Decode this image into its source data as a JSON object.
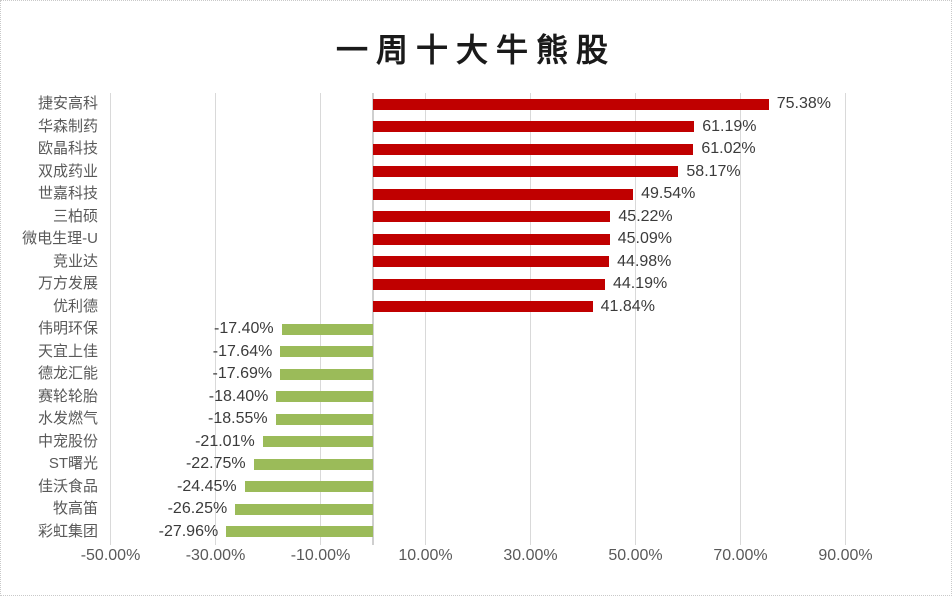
{
  "chart_data": {
    "type": "bar",
    "orientation": "horizontal",
    "title": "一周十大牛熊股",
    "categories": [
      "捷安高科",
      "华森制药",
      "欧晶科技",
      "双成药业",
      "世嘉科技",
      "三柏硕",
      "微电生理-U",
      "竞业达",
      "万方发展",
      "优利德",
      "伟明环保",
      "天宜上佳",
      "德龙汇能",
      "赛轮轮胎",
      "水发燃气",
      "中宠股份",
      "ST曙光",
      "佳沃食品",
      "牧高笛",
      "彩虹集团"
    ],
    "values": [
      75.38,
      61.19,
      61.02,
      58.17,
      49.54,
      45.22,
      45.09,
      44.98,
      44.19,
      41.84,
      -17.4,
      -17.64,
      -17.69,
      -18.4,
      -18.55,
      -21.01,
      -22.75,
      -24.45,
      -26.25,
      -27.96
    ],
    "value_labels": [
      "75.38%",
      "61.19%",
      "61.02%",
      "58.17%",
      "49.54%",
      "45.22%",
      "45.09%",
      "44.98%",
      "44.19%",
      "41.84%",
      "-17.40%",
      "-17.64%",
      "-17.69%",
      "-18.40%",
      "-18.55%",
      "-21.01%",
      "-22.75%",
      "-24.45%",
      "-26.25%",
      "-27.96%"
    ],
    "x_axis": {
      "ticks": [
        -50,
        -30,
        -10,
        10,
        30,
        50,
        70,
        90
      ],
      "tick_labels": [
        "-50.00%",
        "-30.00%",
        "-10.00%",
        "10.00%",
        "30.00%",
        "50.00%",
        "70.00%",
        "90.00%"
      ],
      "xlim": [
        -52.5,
        93
      ]
    },
    "grid": true,
    "legend": false,
    "colors": {
      "positive_bar": "#C00000",
      "negative_bar": "#9BBB59",
      "gridline": "#D9D9D9",
      "axis_line": "#CFCFCF",
      "value_text": "#3B3B3B",
      "category_text": "#595959",
      "tick_text": "#595959",
      "title_text": "#1A1A1A",
      "background": "#FFFFFF",
      "border": "#C9C9C9"
    }
  }
}
